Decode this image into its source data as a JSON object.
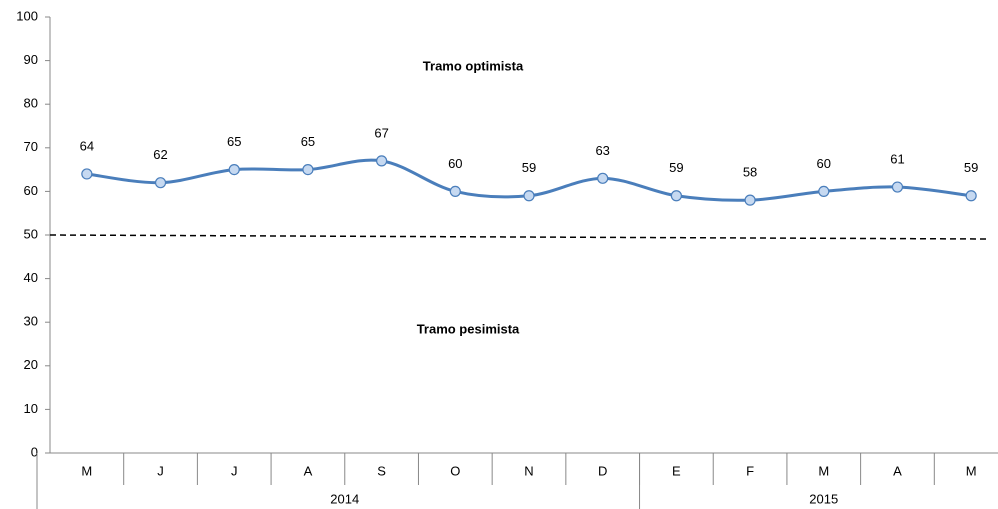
{
  "chart_data": {
    "type": "line",
    "categories": [
      "M",
      "J",
      "J",
      "A",
      "S",
      "O",
      "N",
      "D",
      "E",
      "F",
      "M",
      "A",
      "M"
    ],
    "category_groups": [
      {
        "label": "2014",
        "count": 8
      },
      {
        "label": "2015",
        "count": 5
      }
    ],
    "series": [
      {
        "color": "#4a7ebb",
        "marker_fill": "#c6d9f1",
        "values": [
          64,
          62,
          65,
          65,
          67,
          60,
          59,
          63,
          59,
          58,
          60,
          61,
          59
        ]
      }
    ],
    "ylim": [
      0,
      100
    ],
    "yticks": [
      0,
      10,
      20,
      30,
      40,
      50,
      60,
      70,
      80,
      90,
      100
    ],
    "reference_line": 50,
    "annotations": [
      "Tramo optimista",
      "Tramo pesimista"
    ]
  }
}
